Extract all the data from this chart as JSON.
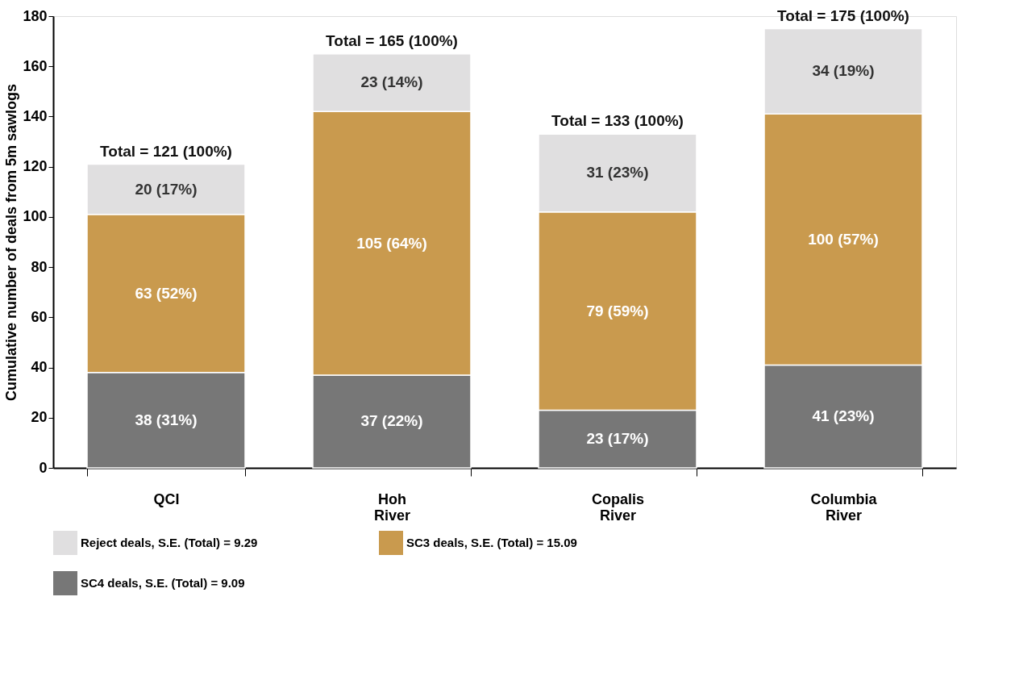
{
  "chart_data": {
    "type": "bar",
    "stacked": true,
    "ylabel": "Cumulative number of deals from 5m sawlogs",
    "categories": [
      "QCI",
      "Hoh River",
      "Copalis River",
      "Columbia River"
    ],
    "series": [
      {
        "name": "SC4 deals, S.E. (Total) = 9.09",
        "color": "#777777",
        "values": [
          38,
          37,
          23,
          41
        ],
        "value_labels": [
          "38 (31%)",
          "37 (22%)",
          "23 (17%)",
          "41 (23%)"
        ]
      },
      {
        "name": "SC3 deals, S.E. (Total) = 15.09",
        "color": "#c99a4e",
        "values": [
          63,
          105,
          79,
          100
        ],
        "value_labels": [
          "63 (52%)",
          "105 (64%)",
          "79 (59%)",
          "100 (57%)"
        ]
      },
      {
        "name": "Reject deals, S.E. (Total) = 9.29",
        "color": "#e0dfe0",
        "values": [
          20,
          23,
          31,
          34
        ],
        "value_labels": [
          "20 (17%)",
          "23 (14%)",
          "31 (23%)",
          "34 (19%)"
        ]
      }
    ],
    "totals": [
      "Total = 121 (100%)",
      "Total = 165 (100%)",
      "Total = 133 (100%)",
      "Total = 175 (100%)"
    ],
    "ylim": [
      0,
      180
    ],
    "yticks": [
      0,
      20,
      40,
      60,
      80,
      100,
      120,
      140,
      160,
      180
    ],
    "grid": false,
    "legend": "bottom"
  }
}
